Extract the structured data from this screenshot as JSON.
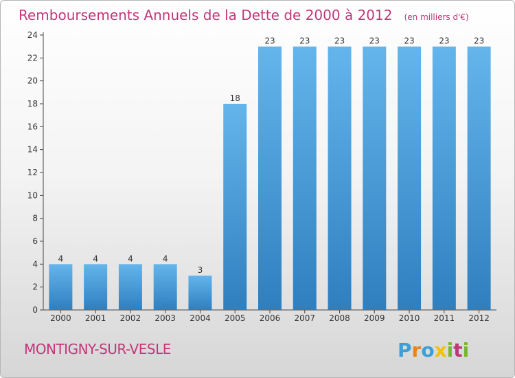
{
  "title": "Remboursements Annuels de la Dette de 2000 à 2012",
  "unit": "(en milliers d'€)",
  "commune": "MONTIGNY-SUR-VESLE",
  "logo": {
    "text": "Proxiti",
    "letters": [
      "P",
      "r",
      "o",
      "x",
      "i",
      "t",
      "i"
    ],
    "colors": [
      "#3aa0d8",
      "#e8841c",
      "#3aa0d8",
      "#f2c200",
      "#76b82a",
      "#c0377a",
      "#76b82a"
    ]
  },
  "colors": {
    "bar_light": "#64b5ec",
    "bar_dark": "#2f7fbf",
    "title": "#c0377a"
  },
  "chart_data": {
    "type": "bar",
    "categories": [
      "2000",
      "2001",
      "2002",
      "2003",
      "2004",
      "2005",
      "2006",
      "2007",
      "2008",
      "2009",
      "2010",
      "2011",
      "2012"
    ],
    "values": [
      4,
      4,
      4,
      4,
      3,
      18,
      23,
      23,
      23,
      23,
      23,
      23,
      23
    ],
    "data_labels": [
      "4",
      "4",
      "4",
      "4",
      "3",
      "18",
      "23",
      "23",
      "23",
      "23",
      "23",
      "23",
      "23"
    ],
    "title": "Remboursements Annuels de la Dette de 2000 à 2012",
    "xlabel": "",
    "ylabel": "",
    "ylim": [
      0,
      24
    ],
    "yticks": [
      0,
      2,
      4,
      6,
      8,
      10,
      12,
      14,
      16,
      18,
      20,
      22,
      24
    ],
    "grid": false,
    "legend": "none"
  }
}
